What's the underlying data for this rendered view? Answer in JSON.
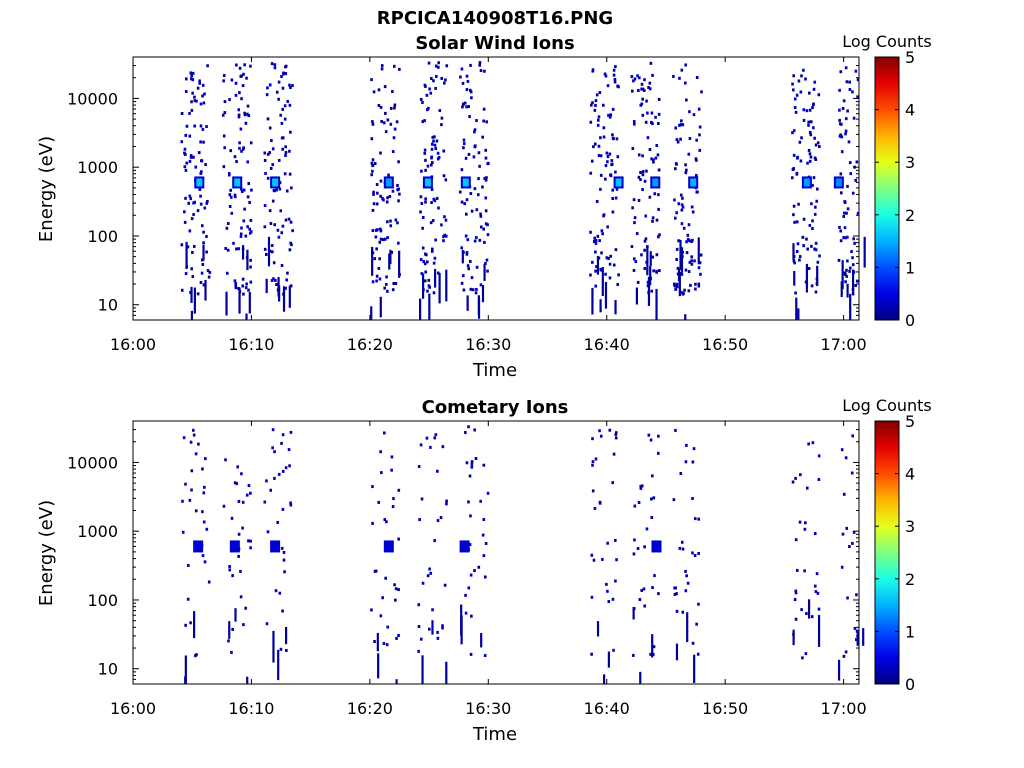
{
  "figure": {
    "title": "RPCICA140908T16.PNG"
  },
  "chart_data": [
    {
      "type": "heatmap",
      "title": "Solar Wind Ions",
      "xlabel": "Time",
      "ylabel": "Energy (eV)",
      "x_tick_labels": [
        "16:00",
        "16:10",
        "16:20",
        "16:30",
        "16:40",
        "16:50",
        "17:00"
      ],
      "x_ticks_minutes": [
        0,
        10,
        20,
        30,
        40,
        50,
        60
      ],
      "xlim_minutes": [
        0,
        61.3
      ],
      "y_scale": "log",
      "y_tick_labels": [
        "10",
        "100",
        "1000",
        "10000"
      ],
      "y_ticks": [
        10,
        100,
        1000,
        10000
      ],
      "ylim": [
        6,
        40000
      ],
      "colorbar": {
        "title": "Log Counts",
        "ticks": [
          0,
          1,
          2,
          3,
          4,
          5
        ],
        "range": [
          0,
          5
        ],
        "colormap": "jet"
      },
      "sweep_bursts_minutes": [
        4,
        7.5,
        11,
        20,
        24,
        27.5,
        38.5,
        42,
        45.5,
        55.5,
        59.5
      ],
      "bright_peaks": [
        {
          "time_min": 5.6,
          "energy_ev": 600,
          "log_counts": 1.6
        },
        {
          "time_min": 8.8,
          "energy_ev": 600,
          "log_counts": 1.6
        },
        {
          "time_min": 12.0,
          "energy_ev": 600,
          "log_counts": 1.6
        },
        {
          "time_min": 21.6,
          "energy_ev": 600,
          "log_counts": 1.4
        },
        {
          "time_min": 24.9,
          "energy_ev": 600,
          "log_counts": 1.6
        },
        {
          "time_min": 28.1,
          "energy_ev": 600,
          "log_counts": 1.6
        },
        {
          "time_min": 41.0,
          "energy_ev": 600,
          "log_counts": 1.6
        },
        {
          "time_min": 44.1,
          "energy_ev": 600,
          "log_counts": 1.4
        },
        {
          "time_min": 47.3,
          "energy_ev": 600,
          "log_counts": 1.5
        },
        {
          "time_min": 56.9,
          "energy_ev": 600,
          "log_counts": 1.4
        },
        {
          "time_min": 59.6,
          "energy_ev": 600,
          "log_counts": 1.3
        }
      ]
    },
    {
      "type": "heatmap",
      "title": "Cometary Ions",
      "xlabel": "Time",
      "ylabel": "Energy (eV)",
      "x_tick_labels": [
        "16:00",
        "16:10",
        "16:20",
        "16:30",
        "16:40",
        "16:50",
        "17:00"
      ],
      "x_ticks_minutes": [
        0,
        10,
        20,
        30,
        40,
        50,
        60
      ],
      "xlim_minutes": [
        0,
        61.3
      ],
      "y_scale": "log",
      "y_tick_labels": [
        "10",
        "100",
        "1000",
        "10000"
      ],
      "y_ticks": [
        10,
        100,
        1000,
        10000
      ],
      "ylim": [
        6,
        40000
      ],
      "colorbar": {
        "title": "Log Counts",
        "ticks": [
          0,
          1,
          2,
          3,
          4,
          5
        ],
        "range": [
          0,
          5
        ],
        "colormap": "jet"
      },
      "sweep_bursts_minutes": [
        4,
        7.5,
        11,
        20,
        24,
        27.5,
        38.5,
        42,
        45.5,
        55.5,
        59.5
      ],
      "bright_peaks": [
        {
          "time_min": 5.5,
          "energy_ev": 600,
          "log_counts": 0.4
        },
        {
          "time_min": 8.6,
          "energy_ev": 600,
          "log_counts": 0.4
        },
        {
          "time_min": 12.0,
          "energy_ev": 600,
          "log_counts": 0.4
        },
        {
          "time_min": 21.6,
          "energy_ev": 600,
          "log_counts": 0.4
        },
        {
          "time_min": 28.0,
          "energy_ev": 600,
          "log_counts": 0.4
        },
        {
          "time_min": 44.2,
          "energy_ev": 600,
          "log_counts": 0.4
        }
      ]
    }
  ]
}
